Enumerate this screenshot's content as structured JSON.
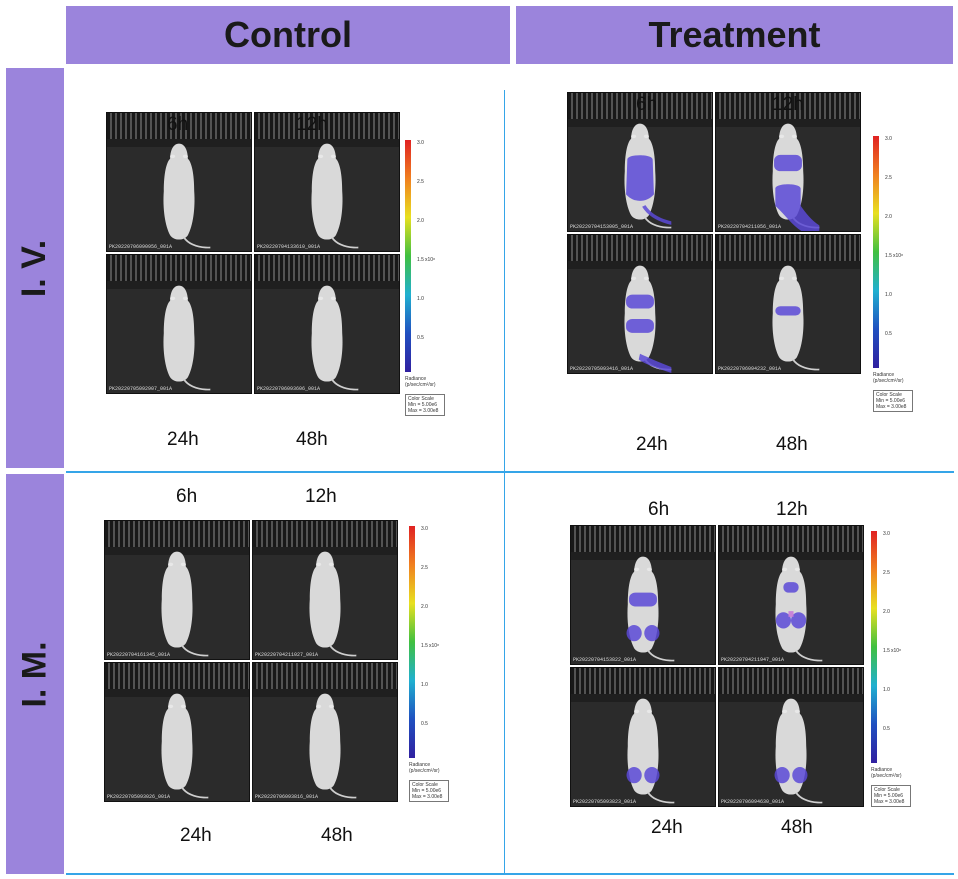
{
  "headers": {
    "control": "Control",
    "treatment": "Treatment"
  },
  "rows": {
    "iv": "I. V.",
    "im": "I. M."
  },
  "time_labels": [
    "6h",
    "12h",
    "24h",
    "48h"
  ],
  "colors": {
    "header_bg": "#9b84dc",
    "divider": "#35a5e8",
    "signal": "#5b49d6"
  },
  "color_scale": {
    "ticks": [
      "3.0",
      "2.5",
      "2.0",
      "1.5",
      "1.0",
      "0.5"
    ],
    "unit": "x10⁸",
    "radiance_label": "Radiance",
    "radiance_unit": "(p/sec/cm²/sr)",
    "box_title": "Color Scale",
    "min": "Min = 5.00e6",
    "max": "Max = 3.00e8"
  },
  "panel_ids": {
    "iv_control": [
      "PK20220706090956_001A",
      "PK20220704133610_001A",
      "PK20220705092907_001A",
      "PK20220706093606_001A"
    ],
    "iv_treatment": [
      "PK20220704153005_001A",
      "PK20220704211056_001A",
      "PK20220705093416_001A",
      "PK20220706094232_001A"
    ],
    "im_control": [
      "PK20220704161345_001A",
      "PK20220704211027_001A",
      "PK20220705093026_001A",
      "PK20220706093816_001A"
    ],
    "im_treatment": [
      "PK20220704153822_001A",
      "PK20220704211947_001A",
      "PK20220705093823_001A",
      "PK20220706094630_001A"
    ]
  }
}
